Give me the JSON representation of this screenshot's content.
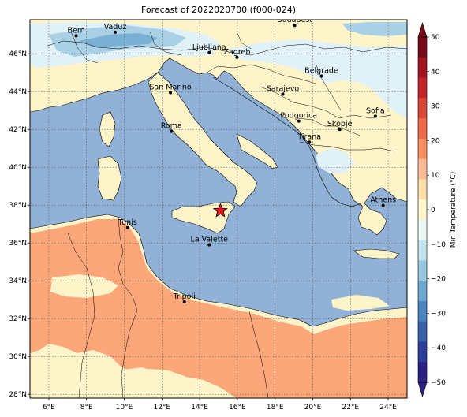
{
  "title": "Forecast of 2022020700 (f000-024)",
  "map": {
    "lon_range": [
      5,
      25
    ],
    "lat_range": [
      27.8,
      47.8
    ],
    "x_ticks": [
      "6°E",
      "8°E",
      "10°E",
      "12°E",
      "14°E",
      "16°E",
      "18°E",
      "20°E",
      "22°E",
      "24°E"
    ],
    "y_ticks": [
      "28°N",
      "30°N",
      "32°N",
      "34°N",
      "36°N",
      "38°N",
      "40°N",
      "42°N",
      "44°N",
      "46°N"
    ],
    "grid": true,
    "sea_color": "#91b2d6",
    "land_colors": {
      "cold_band": "#e0f1f7",
      "mild_band": "#fdf4c9",
      "warm_band": "#fba77a",
      "very_cold_band": "#a9d0e4",
      "colder_band": "#7ab0d4"
    },
    "cities": [
      {
        "name": "Bern",
        "lon": 7.45,
        "lat": 46.95
      },
      {
        "name": "Vaduz",
        "lon": 9.52,
        "lat": 47.14
      },
      {
        "name": "Budapest",
        "lon": 19.04,
        "lat": 47.5
      },
      {
        "name": "Ljubljana",
        "lon": 14.51,
        "lat": 46.06
      },
      {
        "name": "Zagreb",
        "lon": 15.98,
        "lat": 45.81
      },
      {
        "name": "Belgrade",
        "lon": 20.46,
        "lat": 44.82
      },
      {
        "name": "San Marino",
        "lon": 12.45,
        "lat": 43.94
      },
      {
        "name": "Sarajevo",
        "lon": 18.41,
        "lat": 43.86
      },
      {
        "name": "Sofia",
        "lon": 23.32,
        "lat": 42.7
      },
      {
        "name": "Roma",
        "lon": 12.5,
        "lat": 41.9
      },
      {
        "name": "Podgorica",
        "lon": 19.26,
        "lat": 42.44
      },
      {
        "name": "Skopje",
        "lon": 21.43,
        "lat": 42.0
      },
      {
        "name": "Tirana",
        "lon": 19.82,
        "lat": 41.33
      },
      {
        "name": "Athens",
        "lon": 23.73,
        "lat": 37.98
      },
      {
        "name": "Tunis",
        "lon": 10.18,
        "lat": 36.81
      },
      {
        "name": "La Valette",
        "lon": 14.51,
        "lat": 35.9
      },
      {
        "name": "Tripoli",
        "lon": 13.19,
        "lat": 32.89
      }
    ],
    "star": {
      "lon": 15.1,
      "lat": 37.7,
      "color": "#e8121c"
    }
  },
  "colorbar": {
    "label": "Min Temperature (°C)",
    "ticks": [
      "50",
      "40",
      "30",
      "20",
      "10",
      "0",
      "−10",
      "−20",
      "−30",
      "−40",
      "−50"
    ],
    "colors": [
      "#780b19",
      "#a3131f",
      "#c2262b",
      "#db4535",
      "#ee6848",
      "#fa8f62",
      "#fdb98f",
      "#fedfa8",
      "#fdf4c9",
      "#e8f6f4",
      "#c2e3ee",
      "#96c6e0",
      "#6ba6cf",
      "#4a83bf",
      "#3660aa",
      "#2b3e97",
      "#2a2183"
    ],
    "min": -50,
    "max": 50
  }
}
